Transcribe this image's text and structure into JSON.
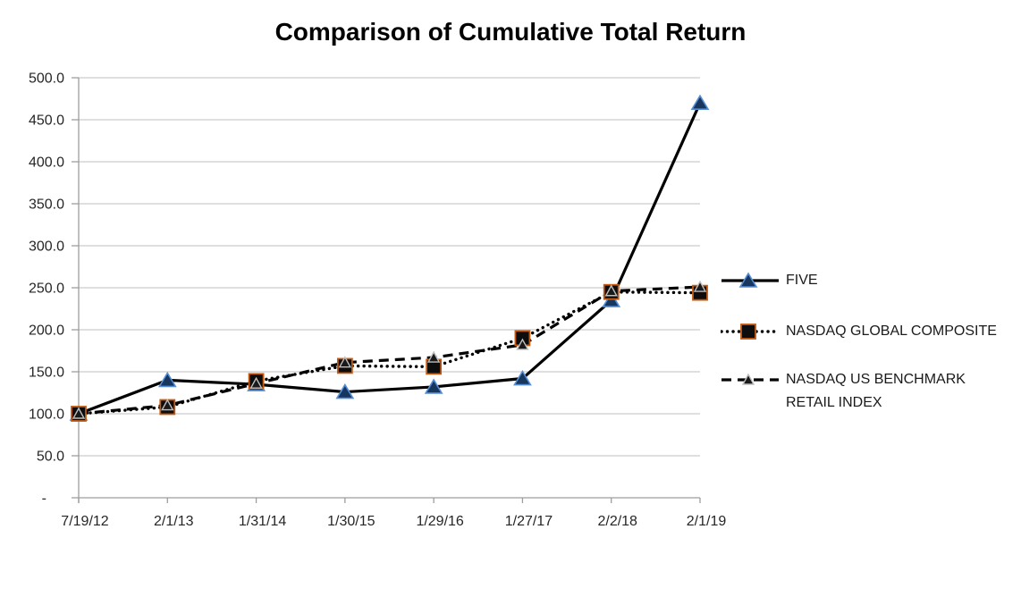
{
  "chart_data": {
    "type": "line",
    "title": "Comparison of Cumulative Total Return",
    "categories": [
      "7/19/12",
      "2/1/13",
      "1/31/14",
      "1/30/15",
      "1/29/16",
      "1/27/17",
      "2/2/18",
      "2/1/19"
    ],
    "y_axis": {
      "min": 0,
      "max": 500,
      "step": 50,
      "tick_labels": [
        "-",
        "50.0",
        "100.0",
        "150.0",
        "200.0",
        "250.0",
        "300.0",
        "350.0",
        "400.0",
        "450.0",
        "500.0"
      ]
    },
    "grid": "horizontal",
    "legend_position": "right",
    "series": [
      {
        "name": "FIVE",
        "values": [
          100,
          140,
          135,
          126,
          132,
          142,
          235,
          470
        ],
        "line_style": "solid",
        "line_color": "#000000",
        "marker": "triangle",
        "marker_fill": "#17375e",
        "marker_stroke": "#558ed5"
      },
      {
        "name": "NASDAQ GLOBAL COMPOSITE",
        "values": [
          100,
          108,
          139,
          157,
          156,
          190,
          245,
          244
        ],
        "line_style": "dotted",
        "line_color": "#000000",
        "marker": "square",
        "marker_fill": "#0d0d0d",
        "marker_stroke": "#c55a11"
      },
      {
        "name": "NASDAQ US BENCHMARK RETAIL INDEX",
        "values": [
          100,
          110,
          136,
          161,
          167,
          182,
          246,
          251
        ],
        "line_style": "dashed",
        "line_color": "#000000",
        "marker": "triangle-small",
        "marker_fill": "#1a1a1a",
        "marker_stroke": "#bfbfbf"
      }
    ],
    "colors": {
      "background": "#ffffff",
      "gridline": "#bfbfbf",
      "axis": "#9d9d9d",
      "text": "#262626",
      "title": "#000000"
    }
  }
}
